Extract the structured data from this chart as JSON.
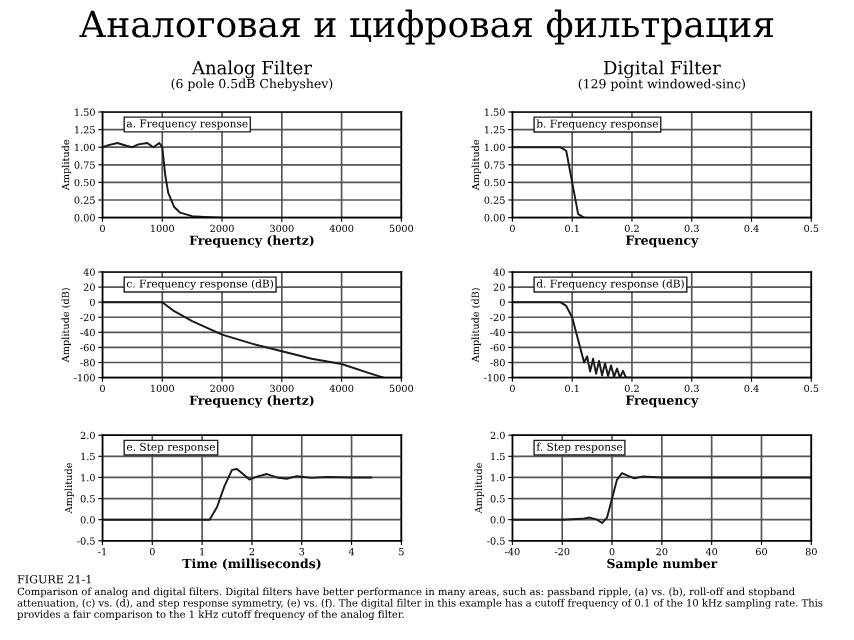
{
  "chart_data": [
    {
      "type": "line",
      "title": "Analog Filter",
      "subtitle": "(6 pole 0.5dB Chebyshev)",
      "xlabel": "Frequency (hertz)",
      "ylabel": "Amplitude",
      "annotations": [
        "a. Frequency response",
        "Аналоговая и цифровая фильтрация"
      ],
      "xlim": [
        0,
        5000
      ],
      "xticks": [
        0,
        1000,
        2000,
        3000,
        4000,
        5000
      ],
      "ylim": [
        0,
        1.5
      ],
      "yticks": [
        {
          "value": 0,
          "label": "0.00"
        },
        {
          "value": 0.25,
          "label": "0.25"
        },
        {
          "value": 0.5,
          "label": "0.50"
        },
        {
          "value": 0.75,
          "label": "0.75"
        },
        {
          "value": 1,
          "label": "1.00"
        },
        {
          "value": 1.25,
          "label": "1.25"
        },
        {
          "value": 1.5,
          "label": "1.50"
        }
      ],
      "grid": true,
      "series": [
        {
          "color": "#1a1a1a",
          "x": [
            0,
            100,
            250,
            400,
            500,
            600,
            750,
            850,
            950,
            1000,
            1050,
            1100,
            1200,
            1300,
            1500,
            1700,
            2000
          ],
          "values": [
            1.0,
            1.03,
            1.06,
            1.02,
            1.0,
            1.04,
            1.06,
            1.0,
            1.06,
            1.0,
            0.6,
            0.35,
            0.15,
            0.07,
            0.02,
            0.01,
            0
          ]
        }
      ]
    },
    {
      "type": "line",
      "title": "Digital Filter",
      "subtitle": "(129 point windowed-sinc)",
      "xlabel": "Frequency",
      "ylabel": "Amplitude",
      "annotations": [
        "b. Frequency response"
      ],
      "xlim": [
        0,
        0.5
      ],
      "xticks": [
        0,
        0.1,
        0.2,
        0.3,
        0.4,
        0.5
      ],
      "ylim": [
        0,
        1.5
      ],
      "yticks": [
        {
          "value": 0,
          "label": "0.00"
        },
        {
          "value": 0.25,
          "label": "0.25"
        },
        {
          "value": 0.5,
          "label": "0.50"
        },
        {
          "value": 0.75,
          "label": "0.75"
        },
        {
          "value": 1,
          "label": "1.00"
        },
        {
          "value": 1.25,
          "label": "1.25"
        },
        {
          "value": 1.5,
          "label": "1.50"
        }
      ],
      "grid": true,
      "series": [
        {
          "color": "#1a1a1a",
          "x": [
            0,
            0.08,
            0.09,
            0.1,
            0.11,
            0.12
          ],
          "values": [
            1,
            1,
            0.95,
            0.5,
            0.05,
            0
          ]
        }
      ]
    },
    {
      "type": "line",
      "xlabel": "Frequency (hertz)",
      "ylabel": "Amplitude (dB)",
      "annotations": [
        "c. Frequency response (dB)"
      ],
      "xlim": [
        0,
        5000
      ],
      "xticks": [
        0,
        1000,
        2000,
        3000,
        4000,
        5000
      ],
      "ylim": [
        -100,
        40
      ],
      "yticks": [
        -100,
        -80,
        -60,
        -40,
        -20,
        0,
        20,
        40
      ],
      "grid": true,
      "series": [
        {
          "color": "#1a1a1a",
          "x": [
            0,
            1000,
            1200,
            1500,
            2000,
            2500,
            3000,
            3500,
            4000,
            4500,
            4700
          ],
          "values": [
            0,
            0,
            -12,
            -25,
            -43,
            -55,
            -65,
            -75,
            -82,
            -95,
            -100
          ]
        }
      ]
    },
    {
      "type": "line",
      "xlabel": "Frequency",
      "ylabel": "Amplitude (dB)",
      "annotations": [
        "d. Frequency response (dB)"
      ],
      "xlim": [
        0,
        0.5
      ],
      "xticks": [
        0,
        0.1,
        0.2,
        0.3,
        0.4,
        0.5
      ],
      "ylim": [
        -100,
        40
      ],
      "yticks": [
        -100,
        -80,
        -60,
        -40,
        -20,
        0,
        20,
        40
      ],
      "grid": true,
      "series": [
        {
          "color": "#1a1a1a",
          "x": [
            0,
            0.08,
            0.09,
            0.1,
            0.11,
            0.12,
            0.125,
            0.13,
            0.135,
            0.14,
            0.145,
            0.15,
            0.155,
            0.16,
            0.165,
            0.17,
            0.175,
            0.18,
            0.185,
            0.19,
            0.2
          ],
          "values": [
            0,
            0,
            -5,
            -20,
            -50,
            -80,
            -72,
            -92,
            -75,
            -95,
            -78,
            -97,
            -81,
            -98,
            -84,
            -99,
            -88,
            -100,
            -91,
            -100,
            -100
          ]
        }
      ]
    },
    {
      "type": "line",
      "xlabel": "Time (milliseconds)",
      "ylabel": "Amplitude",
      "annotations": [
        "e. Step response",
        "FIGURE 21-1",
        "Comparison of analog and digital filters. Digital filters have better performance in many areas, such as: passband ripple, (a) vs. (b), roll-off and stopband attenuation, (c) vs. (d), and step response symmetry, (e) vs. (f). The digital filter in this example has a cutoff frequency of 0.1 of the 10 kHz sampling rate. This provides a fair comparison to the 1 kHz cutoff frequency of the analog filter."
      ],
      "xlim": [
        -1,
        5
      ],
      "xticks": [
        -1,
        0,
        1,
        2,
        3,
        4,
        5
      ],
      "ylim": [
        -0.5,
        2.0
      ],
      "yticks": [
        -0.5,
        {
          "value": 0,
          "label": "0.0"
        },
        0.5,
        {
          "value": 1,
          "label": "1.0"
        },
        1.5,
        {
          "value": 2,
          "label": "2.0"
        }
      ],
      "grid": true,
      "series": [
        {
          "color": "#1a1a1a",
          "x": [
            -1,
            1.15,
            1.3,
            1.45,
            1.6,
            1.7,
            1.85,
            1.95,
            2.1,
            2.3,
            2.5,
            2.7,
            2.9,
            3.2,
            3.5,
            4.0,
            4.4
          ],
          "values": [
            0,
            0,
            0.3,
            0.8,
            1.18,
            1.2,
            1.05,
            0.95,
            1.02,
            1.08,
            1.0,
            0.97,
            1.03,
            0.99,
            1.01,
            1.0,
            1.0
          ]
        }
      ]
    },
    {
      "type": "line",
      "xlabel": "Sample number",
      "ylabel": "Amplitude",
      "annotations": [
        "f. Step response"
      ],
      "xlim": [
        -40,
        80
      ],
      "xticks": [
        -40,
        -20,
        0,
        20,
        40,
        60,
        80
      ],
      "ylim": [
        -0.5,
        2.0
      ],
      "yticks": [
        -0.5,
        {
          "value": 0,
          "label": "0.0"
        },
        0.5,
        {
          "value": 1,
          "label": "1.0"
        },
        1.5,
        {
          "value": 2,
          "label": "2.0"
        }
      ],
      "grid": true,
      "series": [
        {
          "color": "#1a1a1a",
          "x": [
            -40,
            -20,
            -12,
            -9,
            -6,
            -4,
            -2,
            0,
            2,
            4,
            6,
            9,
            12,
            20,
            80
          ],
          "values": [
            0,
            0,
            0.02,
            0.05,
            0,
            -0.08,
            0.05,
            0.5,
            0.95,
            1.1,
            1.05,
            0.98,
            1.02,
            1.0,
            1.0
          ]
        }
      ]
    }
  ]
}
